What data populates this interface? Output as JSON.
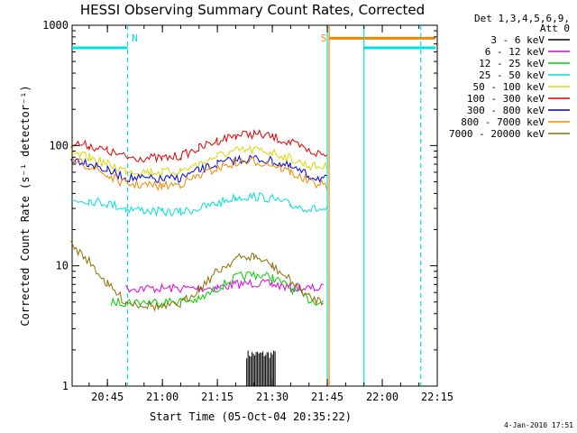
{
  "chart_data": {
    "type": "line",
    "title": "HESSI Observing Summary Count Rates, Corrected",
    "xlabel": "Start Time (05-Oct-04 20:35:22)",
    "ylabel": "Corrected Count Rate (s⁻¹ detector⁻¹)",
    "y_scale": "log",
    "ylim": [
      1,
      1000
    ],
    "xlim": [
      "20:35:22",
      "22:15:00"
    ],
    "x_tick_labels": [
      "20:45",
      "21:00",
      "21:15",
      "21:30",
      "21:45",
      "22:00",
      "22:15"
    ],
    "y_tick_labels": [
      "1",
      "10",
      "100",
      "1000"
    ],
    "legend_header": [
      "Det 1,3,4,5,6,9,",
      "Att 0"
    ],
    "legend_position": "right",
    "footer_timestamp": "4-Jan-2010 17:51",
    "markers": [
      {
        "label": "N",
        "time": "20:50:30",
        "color": "#00e0e0",
        "style": "dashed"
      },
      {
        "label": "S",
        "time": "21:45:30",
        "color": "#f08a00",
        "style": "solid"
      }
    ],
    "extra_lines": [
      {
        "time": "21:45:00",
        "color": "#00e0e0",
        "style": "solid"
      },
      {
        "time": "21:55:00",
        "color": "#00e0e0",
        "style": "solid"
      },
      {
        "time": "22:10:30",
        "color": "#00e0e0",
        "style": "dashed"
      }
    ],
    "flags": [
      {
        "name": "night",
        "color": "#00e0e0",
        "value": 650,
        "segments": [
          [
            "20:35:22",
            "20:50:30"
          ],
          [
            "21:55:00",
            "22:14:30"
          ]
        ]
      },
      {
        "name": "saa",
        "color": "#f08a00",
        "value": 780,
        "segments": [
          [
            "21:45:30",
            "22:14:30"
          ]
        ]
      }
    ],
    "series": [
      {
        "name": "3 - 6 keV",
        "color": "#000000",
        "x": [
          "21:23",
          "21:31"
        ],
        "values": [
          1.5,
          1.5
        ],
        "band": "block",
        "upper": 2.0
      },
      {
        "name": "6 - 12 keV",
        "color": "#e000e0",
        "x": [
          "20:50",
          "21:00",
          "21:10",
          "21:15",
          "21:20",
          "21:25",
          "21:30",
          "21:35",
          "21:40",
          "21:44"
        ],
        "values": [
          6.5,
          6.5,
          6.5,
          6.6,
          7.0,
          7.2,
          7.0,
          6.6,
          6.5,
          6.5
        ]
      },
      {
        "name": "12 - 25 keV",
        "color": "#00d000",
        "x": [
          "20:46",
          "20:50",
          "21:00",
          "21:10",
          "21:15",
          "21:20",
          "21:25",
          "21:30",
          "21:35",
          "21:40",
          "21:44"
        ],
        "values": [
          5.0,
          5.0,
          5.0,
          5.2,
          6.5,
          8.0,
          8.5,
          8.0,
          6.5,
          5.2,
          5.0
        ]
      },
      {
        "name": "25 - 50 keV",
        "color": "#00e0e0",
        "x": [
          "20:35",
          "20:40",
          "20:45",
          "20:50",
          "21:00",
          "21:05",
          "21:10",
          "21:15",
          "21:20",
          "21:25",
          "21:30",
          "21:35",
          "21:40",
          "21:45"
        ],
        "values": [
          35,
          35,
          33,
          30,
          28,
          28,
          30,
          33,
          37,
          38,
          36,
          32,
          30,
          29
        ]
      },
      {
        "name": "50 - 100 keV",
        "color": "#d8d800",
        "x": [
          "20:35",
          "20:40",
          "20:45",
          "20:50",
          "21:00",
          "21:05",
          "21:10",
          "21:15",
          "21:20",
          "21:25",
          "21:30",
          "21:35",
          "21:40",
          "21:45"
        ],
        "values": [
          85,
          80,
          70,
          62,
          60,
          62,
          70,
          82,
          90,
          92,
          88,
          78,
          68,
          66
        ]
      },
      {
        "name": "100 - 300 keV",
        "color": "#e00000",
        "x": [
          "20:35",
          "20:40",
          "20:45",
          "20:50",
          "21:00",
          "21:05",
          "21:10",
          "21:15",
          "21:20",
          "21:25",
          "21:30",
          "21:35",
          "21:40",
          "21:45"
        ],
        "values": [
          105,
          100,
          90,
          80,
          78,
          82,
          95,
          110,
          122,
          125,
          118,
          105,
          90,
          82
        ]
      },
      {
        "name": "300 - 800 keV",
        "color": "#0000e0",
        "x": [
          "20:35",
          "20:40",
          "20:45",
          "20:50",
          "21:00",
          "21:05",
          "21:10",
          "21:15",
          "21:20",
          "21:25",
          "21:30",
          "21:35",
          "21:40",
          "21:45"
        ],
        "values": [
          78,
          72,
          62,
          54,
          52,
          54,
          62,
          70,
          76,
          78,
          74,
          66,
          56,
          52
        ]
      },
      {
        "name": "800 - 7000 keV",
        "color": "#f08a00",
        "x": [
          "20:35",
          "20:40",
          "20:45",
          "20:50",
          "21:00",
          "21:05",
          "21:10",
          "21:15",
          "21:20",
          "21:25",
          "21:30",
          "21:35",
          "21:40",
          "21:45"
        ],
        "values": [
          75,
          68,
          56,
          48,
          46,
          48,
          56,
          65,
          72,
          74,
          70,
          60,
          50,
          46
        ]
      },
      {
        "name": "7000 - 20000 keV",
        "color": "#8a7000",
        "x": [
          "20:35",
          "20:40",
          "20:45",
          "20:50",
          "21:00",
          "21:05",
          "21:10",
          "21:15",
          "21:20",
          "21:25",
          "21:30",
          "21:35",
          "21:40",
          "21:44"
        ],
        "values": [
          15,
          11,
          7,
          5,
          4.5,
          4.8,
          6.5,
          9,
          11.5,
          12,
          10,
          7.5,
          5.5,
          5
        ]
      }
    ]
  }
}
